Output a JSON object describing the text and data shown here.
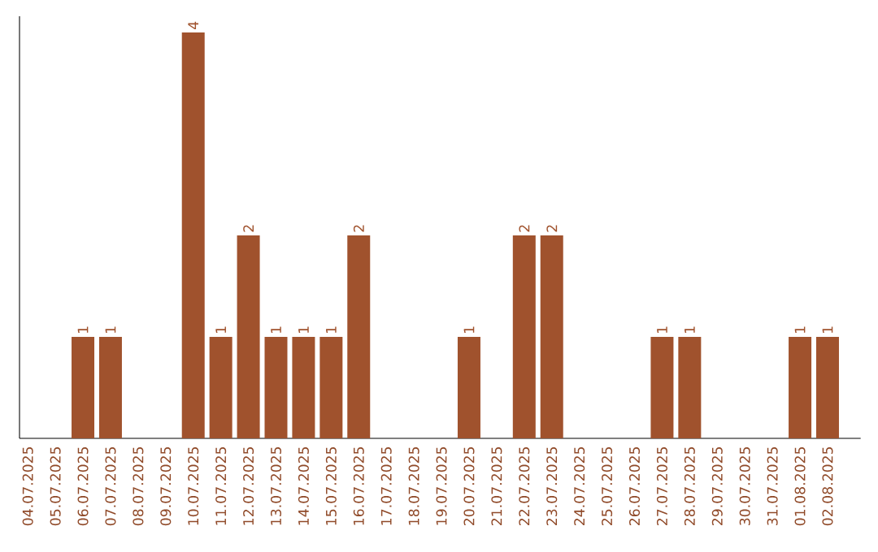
{
  "chart_data": {
    "type": "bar",
    "categories": [
      "04.07.2025",
      "05.07.2025",
      "06.07.2025",
      "07.07.2025",
      "08.07.2025",
      "09.07.2025",
      "10.07.2025",
      "11.07.2025",
      "12.07.2025",
      "13.07.2025",
      "14.07.2025",
      "15.07.2025",
      "16.07.2025",
      "17.07.2025",
      "18.07.2025",
      "19.07.2025",
      "20.07.2025",
      "21.07.2025",
      "22.07.2025",
      "23.07.2025",
      "24.07.2025",
      "25.07.2025",
      "26.07.2025",
      "27.07.2025",
      "28.07.2025",
      "29.07.2025",
      "30.07.2025",
      "31.07.2025",
      "01.08.2025",
      "02.08.2025"
    ],
    "values": [
      0,
      0,
      1,
      1,
      0,
      0,
      4,
      1,
      2,
      1,
      1,
      1,
      2,
      0,
      0,
      0,
      1,
      0,
      2,
      2,
      0,
      0,
      0,
      1,
      1,
      0,
      0,
      0,
      1,
      1
    ],
    "value_labels": [
      null,
      null,
      "1",
      "1",
      null,
      null,
      "4",
      "1",
      "2",
      "1",
      "1",
      "1",
      "2",
      null,
      null,
      null,
      "1",
      null,
      "2",
      "2",
      null,
      null,
      null,
      "1",
      "1",
      null,
      null,
      null,
      "1",
      "1"
    ],
    "color": "#a0522d",
    "tick_labels": "x"
  }
}
